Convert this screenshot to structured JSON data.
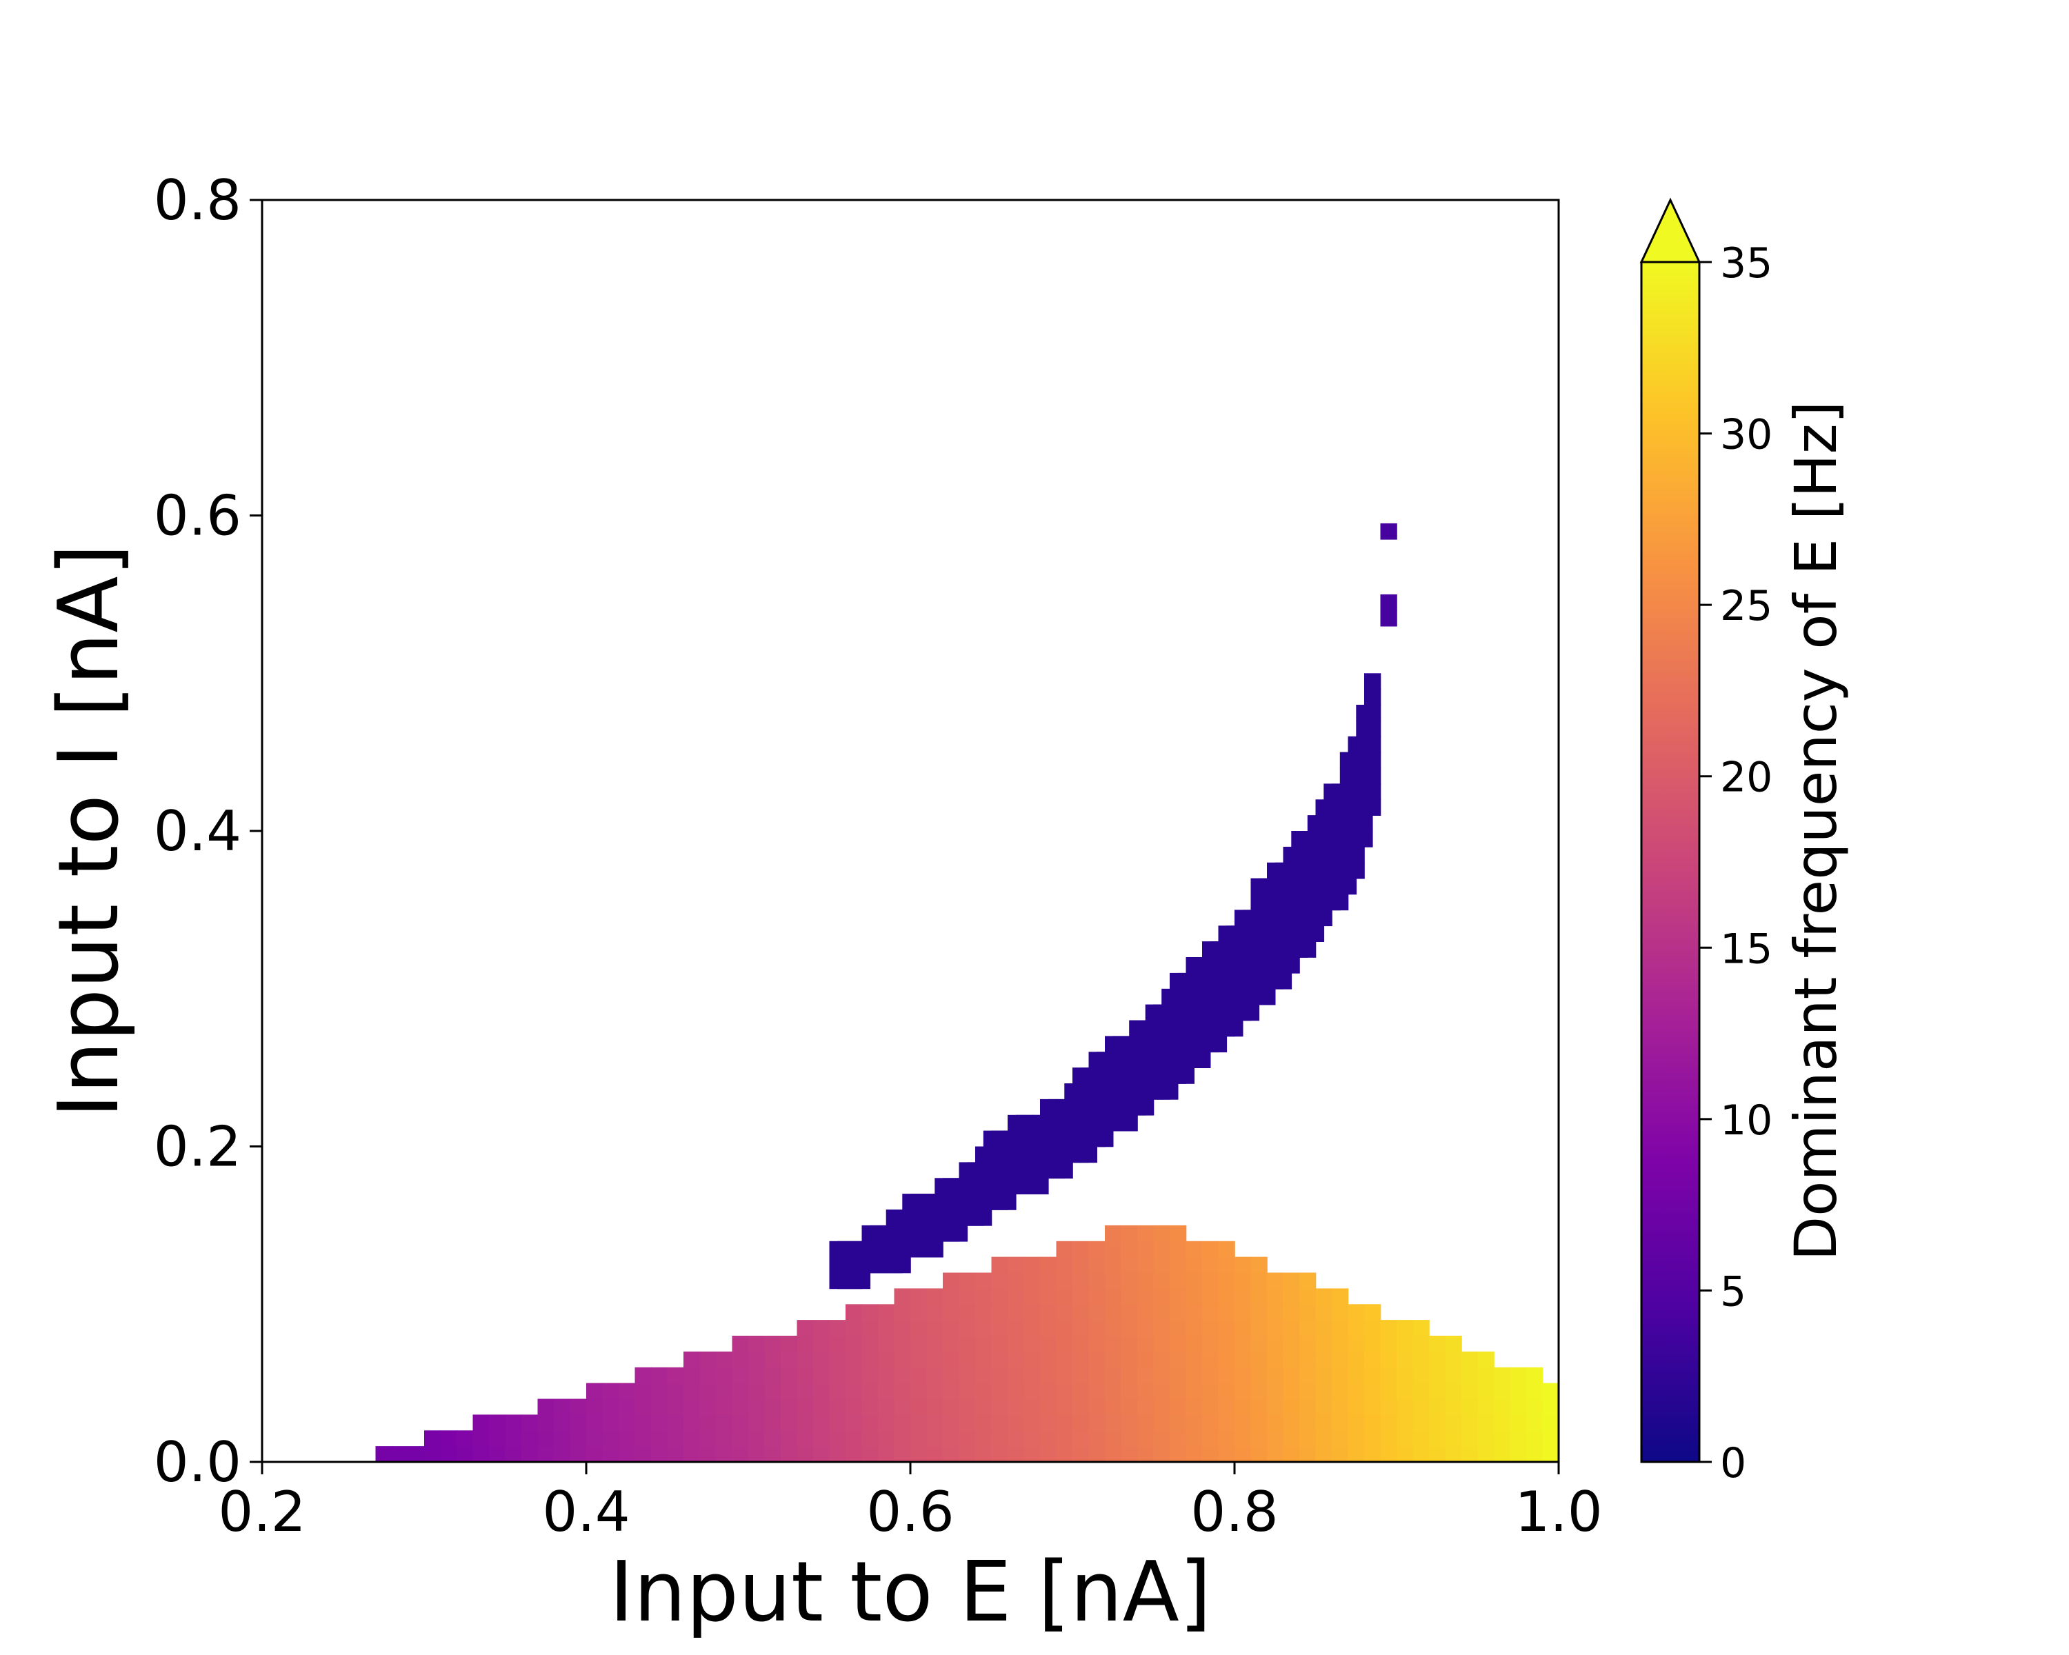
{
  "chart_data": {
    "type": "heatmap",
    "title": "",
    "xlabel": "Input to E [nA]",
    "ylabel": "Input to I [nA]",
    "xlim": [
      0.2,
      1.0
    ],
    "ylim": [
      0.0,
      0.8
    ],
    "xticks": [
      "0.2",
      "0.4",
      "0.6",
      "0.8",
      "1.0"
    ],
    "yticks": [
      "0.0",
      "0.2",
      "0.4",
      "0.6",
      "0.8"
    ],
    "grid": false,
    "colormap": "plasma",
    "colorbar": {
      "label": "Dominant frequency of E [Hz]",
      "range": [
        0,
        35
      ],
      "ticks": [
        "0",
        "5",
        "10",
        "15",
        "20",
        "25",
        "30",
        "35"
      ],
      "extend": "max",
      "placement": "right"
    },
    "bins": {
      "x_step": 0.01,
      "y_step": 0.01
    },
    "oscillation_region": {
      "description_values": "lower triangle: x from 0.27 to 1.0 at y=0, upper edge rising to y=0.15 near x=0.75; frequency increases with x",
      "lower_boundary_y0_x": 0.27,
      "apex_x": 0.75,
      "apex_y": 0.15,
      "right_edge_y_at_x1": 0.045,
      "frequency_samples": [
        {
          "x": 0.3,
          "f": 8
        },
        {
          "x": 0.4,
          "f": 12
        },
        {
          "x": 0.5,
          "f": 15
        },
        {
          "x": 0.6,
          "f": 19
        },
        {
          "x": 0.7,
          "f": 22
        },
        {
          "x": 0.8,
          "f": 26
        },
        {
          "x": 0.9,
          "f": 31
        },
        {
          "x": 1.0,
          "f": 35
        }
      ]
    },
    "slow_band": {
      "description_values": "thin curved band of ~1-4 Hz from (0.55, 0.12) curving up to (0.88, 0.49)",
      "frequency": 2,
      "centerline": [
        {
          "x": 0.55,
          "y": 0.12
        },
        {
          "x": 0.6,
          "y": 0.145
        },
        {
          "x": 0.65,
          "y": 0.18
        },
        {
          "x": 0.7,
          "y": 0.215
        },
        {
          "x": 0.75,
          "y": 0.26
        },
        {
          "x": 0.8,
          "y": 0.31
        },
        {
          "x": 0.84,
          "y": 0.36
        },
        {
          "x": 0.87,
          "y": 0.41
        },
        {
          "x": 0.885,
          "y": 0.47
        }
      ],
      "isolated_points": [
        {
          "x": 0.89,
          "y": 0.585
        },
        {
          "x": 0.89,
          "y": 0.54
        },
        {
          "x": 0.89,
          "y": 0.53
        }
      ]
    }
  }
}
